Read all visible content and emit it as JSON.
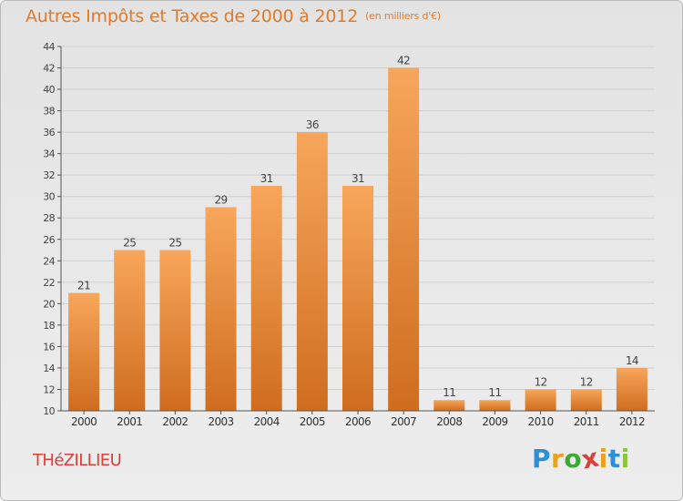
{
  "header": {
    "title": "Autres Impôts et Taxes de 2000 à 2012",
    "unit": "(en milliers d'€)"
  },
  "footer": {
    "town": "THéZILLIEU",
    "brand_letters": [
      "P",
      "r",
      "o",
      "x",
      "i",
      "t",
      "i"
    ],
    "brand_colors": [
      "#2d8fd5",
      "#e8a21c",
      "#3aa935",
      "#d9403a",
      "#e8a21c",
      "#2d8fd5",
      "#8cc63f"
    ]
  },
  "colors": {
    "bar_top": "#f7a65b",
    "bar_bottom": "#cf6d1f",
    "grid": "#cfcfcf",
    "title": "#e07a2a",
    "town": "#d9403a"
  },
  "chart_data": {
    "type": "bar",
    "categories": [
      "2000",
      "2001",
      "2002",
      "2003",
      "2004",
      "2005",
      "2006",
      "2007",
      "2008",
      "2009",
      "2010",
      "2011",
      "2012"
    ],
    "values": [
      21,
      25,
      25,
      29,
      31,
      36,
      31,
      42,
      11,
      11,
      12,
      12,
      14
    ],
    "ylim": [
      10,
      44
    ],
    "yticks": [
      10,
      12,
      14,
      16,
      18,
      20,
      22,
      24,
      26,
      28,
      30,
      32,
      34,
      36,
      38,
      40,
      42,
      44
    ],
    "grid": true,
    "legend": "none"
  }
}
